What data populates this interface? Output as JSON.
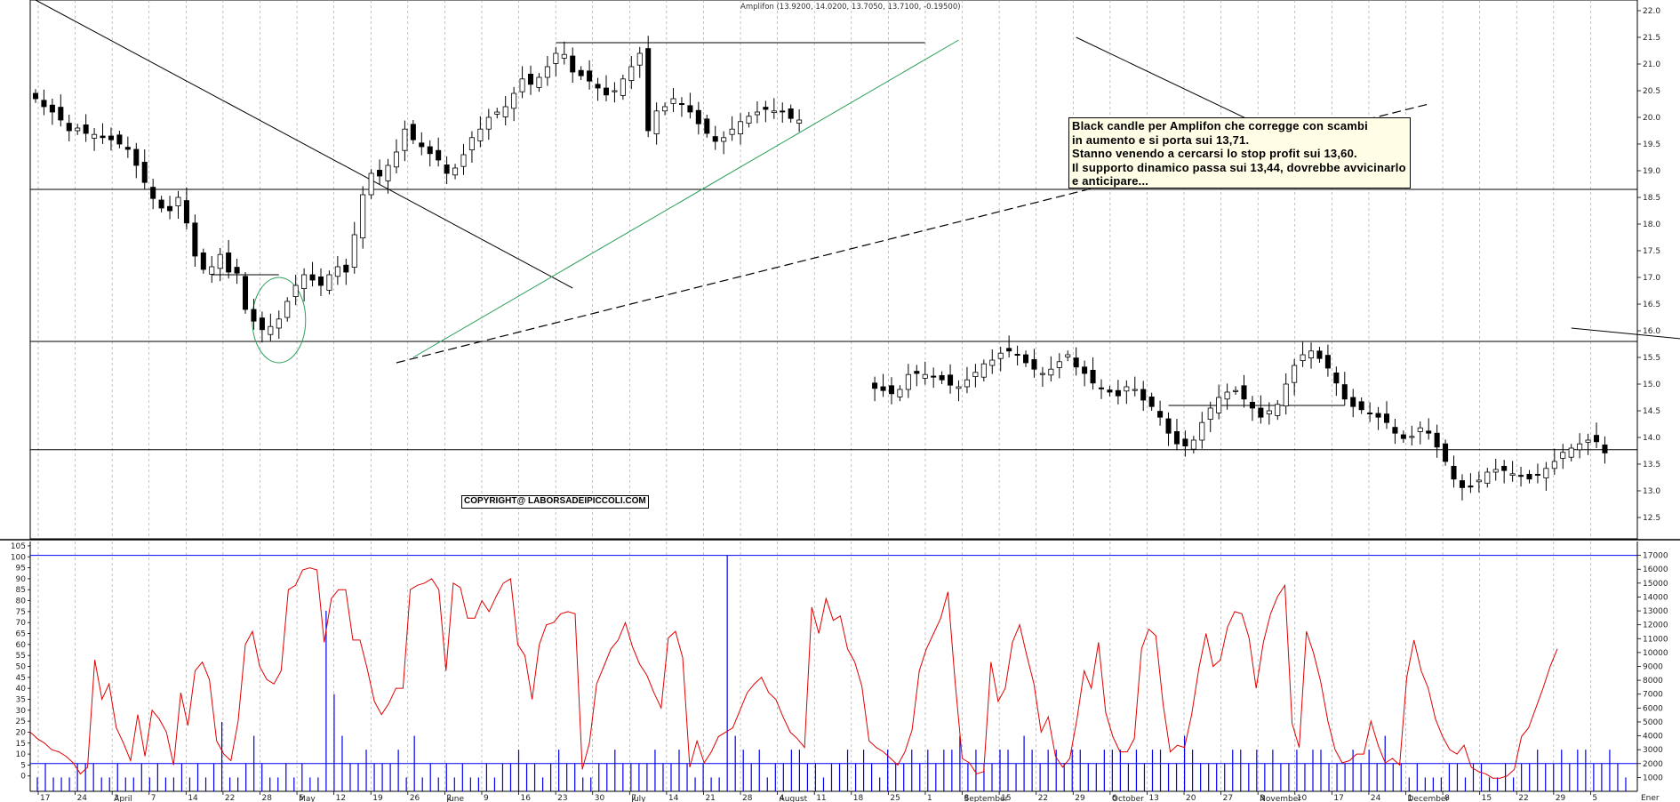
{
  "title": "Amplifon (13.9200, 14.0200, 13.7050, 13.7100, -0.19500)",
  "copyright": "COPYRIGHT@ LABORSADEIPICCOLI.COM",
  "annotation": [
    "Black candle per Amplifon che corregge con scambi",
    "in aumento e si porta sui 13,71.",
    "Stanno venendo a cercarsi lo stop profit sui 13,60.",
    "Il supporto dinamico passa sui 13,44, dovrebbe avvicinarlo",
    "e anticipare..."
  ],
  "colors": {
    "background": "#ffffff",
    "candles": "#000000",
    "oscillator": "#e00000",
    "volume": "#0000ee",
    "green_trendline": "#2aa05a",
    "grid": "#9a9a9a"
  },
  "chart_data": {
    "type": "candlestick",
    "price_axis": {
      "ylim": [
        12.1,
        22.2
      ],
      "ticks": [
        "12.5",
        "13.0",
        "13.5",
        "14.0",
        "14.5",
        "15.0",
        "15.5",
        "16.0",
        "16.5",
        "17.0",
        "17.5",
        "18.0",
        "18.5",
        "19.0",
        "19.5",
        "20.0",
        "20.5",
        "21.0",
        "21.5",
        "22.0"
      ]
    },
    "oscillator_axis": {
      "ylim": [
        -7,
        107
      ],
      "ticks": [
        "0",
        "5",
        "10",
        "15",
        "20",
        "25",
        "30",
        "35",
        "40",
        "45",
        "50",
        "55",
        "60",
        "65",
        "70",
        "75",
        "80",
        "85",
        "90",
        "95",
        "100",
        "105"
      ]
    },
    "volume_axis": {
      "ylim": [
        0,
        18000
      ],
      "ticks": [
        "1000",
        "2000",
        "3000",
        "4000",
        "5000",
        "6000",
        "7000",
        "8000",
        "9000",
        "10000",
        "11000",
        "12000",
        "13000",
        "14000",
        "15000",
        "16000",
        "17000"
      ]
    },
    "x_axis": {
      "day_ticks": [
        "17",
        "24",
        "3",
        "7",
        "14",
        "22",
        "28",
        "5",
        "12",
        "19",
        "26",
        "2",
        "9",
        "16",
        "23",
        "30",
        "7",
        "14",
        "21",
        "28",
        "4",
        "11",
        "18",
        "25",
        "1",
        "8",
        "15",
        "22",
        "29",
        "6",
        "13",
        "20",
        "27",
        "3",
        "10",
        "17",
        "24",
        "1",
        "8",
        "15",
        "22",
        "29",
        "5"
      ],
      "month_labels": [
        "April",
        "May",
        "June",
        "July",
        "August",
        "September",
        "October",
        "November",
        "December"
      ],
      "right_stub": "Ener"
    },
    "horizontal_levels": [
      18.65,
      15.8,
      13.77
    ],
    "short_levels": [
      17.05,
      14.6,
      21.4
    ],
    "trendlines": [
      {
        "name": "main-downtrend",
        "from": [
          0,
          22.2
        ],
        "to": [
          64,
          16.8
        ]
      },
      {
        "name": "green-uptrend",
        "from": [
          45,
          15.5
        ],
        "to": [
          102,
          21.45
        ]
      },
      {
        "name": "dashed-support",
        "from": [
          43,
          15.4
        ],
        "to": [
          158,
          20.25
        ]
      },
      {
        "name": "july-downtrend",
        "from": [
          116,
          21.5
        ],
        "to": [
          140,
          19.7
        ]
      },
      {
        "name": "july-support",
        "from": [
          130,
          19.25
        ],
        "to": [
          152,
          19.9
        ]
      },
      {
        "name": "sep-downtrend",
        "from": [
          175,
          16.05
        ],
        "to": [
          244,
          15.0
        ]
      },
      {
        "name": "oct-support",
        "from": [
          213,
          13.75
        ],
        "to": [
          254,
          14.8
        ]
      },
      {
        "name": "dec-support",
        "from": [
          268,
          12.85
        ],
        "to": [
          307,
          13.65
        ]
      }
    ],
    "price_series": [
      20.35,
      20.2,
      20.1,
      19.95,
      19.75,
      19.8,
      19.7,
      19.68,
      19.62,
      19.58,
      19.5,
      19.4,
      19.1,
      18.78,
      18.48,
      18.3,
      18.25,
      18.5,
      18.02,
      17.4,
      17.15,
      17.2,
      17.43,
      17.1,
      17.08,
      16.4,
      16.18,
      16.02,
      16.08,
      16.22,
      16.55,
      16.85,
      17.05,
      16.95,
      16.85,
      17.05,
      17.2,
      17.1,
      17.8,
      18.55,
      18.95,
      18.9,
      19.1,
      19.35,
      19.78,
      19.58,
      19.45,
      19.32,
      19.2,
      18.95,
      19.05,
      19.3,
      19.62,
      19.78,
      20.0,
      20.1,
      20.2,
      20.45,
      20.72,
      20.62,
      20.75,
      20.95,
      21.2,
      21.18,
      20.85,
      20.78,
      20.68,
      20.55,
      20.42,
      20.5,
      20.72,
      20.95,
      21.2,
      19.75,
      20.12,
      20.2,
      20.35,
      20.25,
      20.1,
      19.88,
      19.7,
      19.55,
      19.62,
      19.78,
      19.92,
      20.02,
      20.1,
      20.15,
      20.12,
      20.1,
      19.98,
      19.95,
      14.92,
      14.88,
      14.82,
      14.9,
      15.18,
      15.2,
      15.18,
      15.13,
      15.08,
      14.98,
      14.95,
      15.08,
      15.22,
      15.38,
      15.45,
      15.58,
      15.62,
      15.55,
      15.4,
      15.28,
      15.2,
      15.28,
      15.42,
      15.55,
      15.32,
      15.2,
      15.02,
      14.92,
      14.85,
      14.78,
      14.95,
      14.9,
      14.7,
      14.58,
      14.38,
      14.08,
      13.88,
      13.84,
      13.95,
      14.28,
      14.55,
      14.75,
      14.85,
      14.88,
      14.72,
      14.55,
      14.38,
      14.5,
      14.62,
      15.0,
      15.35,
      15.55,
      15.62,
      15.48,
      15.3,
      15.02,
      14.72,
      14.58,
      14.52,
      14.45,
      14.38,
      14.28,
      14.08,
      13.98,
      14.02,
      14.18,
      14.08,
      13.82,
      13.55,
      13.22,
      13.06,
      13.08,
      13.2,
      13.35,
      13.4,
      13.38,
      13.32,
      13.28,
      13.22,
      13.3,
      13.42,
      13.55,
      13.72,
      13.8,
      13.88,
      13.95,
      13.92,
      13.71
    ],
    "oscillator_series": [
      20,
      17,
      15,
      12,
      11,
      9,
      6,
      1,
      4,
      53,
      35,
      42,
      22,
      15,
      7,
      28,
      9,
      30,
      26,
      20,
      5,
      38,
      23,
      48,
      52,
      44,
      16,
      10,
      7,
      25,
      60,
      66,
      50,
      44,
      42,
      48,
      85,
      87,
      94,
      95,
      94,
      61,
      81,
      85,
      85,
      62,
      62,
      49,
      34,
      28,
      33,
      40,
      40,
      85,
      87,
      88,
      90,
      85,
      48,
      88,
      86,
      72,
      72,
      80,
      75,
      82,
      88,
      90,
      60,
      55,
      35,
      60,
      69,
      70,
      74,
      75,
      74,
      3,
      15,
      42,
      50,
      58,
      62,
      70,
      59,
      51,
      46,
      38,
      31,
      63,
      66,
      54,
      4,
      16,
      6,
      11,
      18,
      20,
      22,
      30,
      38,
      42,
      45,
      38,
      35,
      27,
      20,
      17,
      13,
      77,
      65,
      81,
      71,
      73,
      58,
      52,
      41,
      16,
      13,
      11,
      8,
      5,
      11,
      21,
      48,
      58,
      65,
      72,
      84,
      43,
      8,
      6,
      1,
      2,
      52,
      34,
      40,
      61,
      69,
      55,
      42,
      20,
      27,
      9,
      4,
      8,
      26,
      48,
      40,
      61,
      29,
      18,
      11,
      11,
      17,
      58,
      67,
      64,
      33,
      11,
      14,
      13,
      28,
      49,
      65,
      50,
      53,
      68,
      75,
      74,
      63,
      40,
      61,
      74,
      82,
      87,
      24,
      13,
      66,
      56,
      43,
      25,
      12,
      6,
      7,
      10,
      10,
      25,
      14,
      6,
      8,
      5,
      45,
      62,
      48,
      40,
      26,
      18,
      12,
      10,
      14,
      4,
      2,
      1,
      -1,
      -1,
      0,
      3,
      18,
      22,
      31,
      40,
      50,
      58
    ],
    "volume_series": [
      1,
      2,
      1,
      1,
      1,
      2,
      2,
      2,
      1,
      1,
      2,
      1,
      1,
      2,
      1,
      2,
      1,
      1,
      2,
      1,
      2,
      1,
      2,
      5,
      1,
      1,
      2,
      4,
      2,
      1,
      1,
      2,
      1,
      2,
      1,
      1,
      13,
      7,
      4,
      2,
      2,
      3,
      2,
      2,
      2,
      3,
      1,
      4,
      1,
      2,
      1,
      2,
      1,
      2,
      1,
      1,
      2,
      1,
      2,
      2,
      3,
      2,
      2,
      1,
      2,
      3,
      2,
      2,
      1,
      1,
      2,
      2,
      3,
      2,
      2,
      2,
      2,
      3,
      2,
      2,
      3,
      2,
      1,
      2,
      1,
      1,
      17,
      4,
      3,
      2,
      3,
      1,
      2,
      2,
      3,
      3,
      2,
      2,
      1,
      2,
      2,
      3,
      2,
      3,
      2,
      1,
      3,
      2,
      2,
      3,
      2,
      3,
      2,
      3,
      3,
      4,
      2,
      3,
      2,
      2,
      3,
      3,
      2,
      4,
      3,
      2,
      3,
      3,
      2,
      3,
      3,
      2,
      2,
      3,
      3,
      3,
      2,
      3,
      2,
      3,
      3,
      2,
      2,
      4,
      3,
      2,
      2,
      2,
      2,
      3,
      3,
      2,
      3,
      2,
      3,
      2,
      2,
      3,
      2,
      3,
      3,
      2,
      2,
      2,
      3,
      2,
      3,
      2,
      4,
      2,
      2,
      1,
      2,
      1,
      1,
      1,
      2,
      2,
      1,
      2,
      2,
      1,
      1,
      2,
      1,
      2,
      2,
      3,
      2,
      2,
      3,
      2,
      3,
      3,
      2,
      2,
      3,
      2,
      1
    ]
  }
}
